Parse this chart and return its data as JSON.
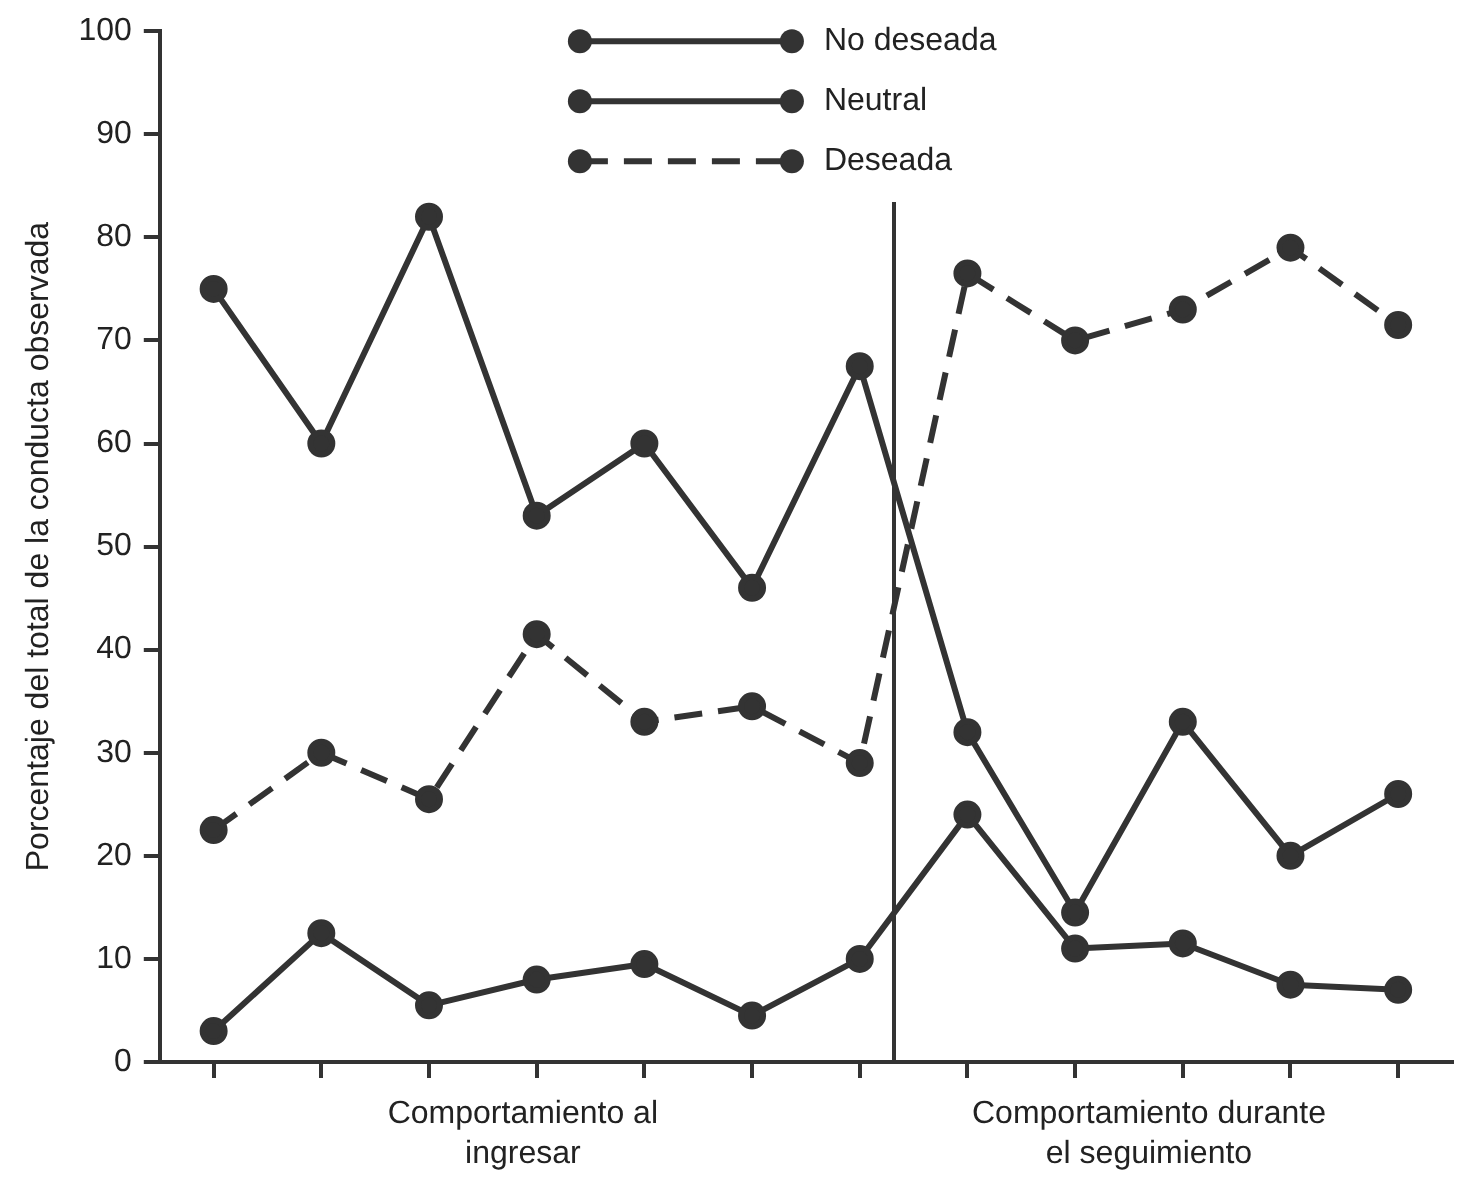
{
  "chart_data": {
    "type": "line",
    "ylabel": "Porcentaje del total de la conducta observada",
    "categories": [
      null,
      null,
      null,
      null,
      null,
      null,
      null,
      null,
      null,
      null,
      null,
      null
    ],
    "ylim": [
      0,
      100
    ],
    "yticks": [
      0,
      10,
      20,
      30,
      40,
      50,
      60,
      70,
      80,
      90,
      100
    ],
    "tick_labels": "y",
    "grid": false,
    "legend": "top",
    "marker": "circle",
    "series": [
      {
        "name": "No deseada",
        "color": "#333333",
        "line_style": "solid",
        "values": [
          75,
          60,
          82,
          53,
          60,
          46,
          67.5,
          32,
          14.5,
          33,
          20,
          26
        ]
      },
      {
        "name": "Neutral",
        "color": "#333333",
        "line_style": "solid",
        "values": [
          3,
          12.5,
          5.5,
          8,
          9.5,
          4.5,
          10,
          24,
          11,
          11.5,
          7.5,
          7
        ]
      },
      {
        "name": "Deseada",
        "color": "#333333",
        "line_style": "dashed",
        "values": [
          22.5,
          30,
          25.5,
          41.5,
          33,
          34.5,
          29,
          76.5,
          70,
          73,
          79,
          71.5
        ]
      }
    ],
    "annotations": [
      "Comportamiento al\ningresar",
      "Comportamiento durante\nel seguimiento"
    ]
  }
}
